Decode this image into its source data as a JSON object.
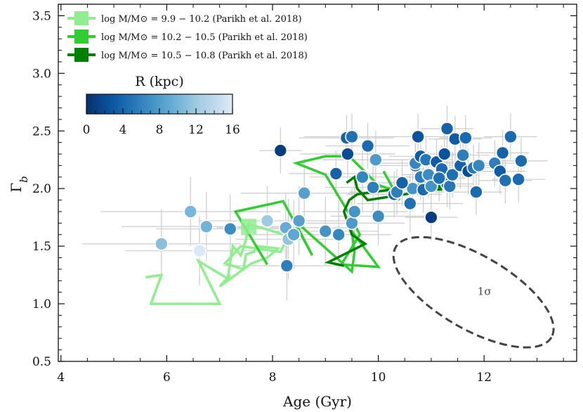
{
  "chart_data": {
    "type": "scatter",
    "xlabel": "Age (Gyr)",
    "ylabel": "Γ_b",
    "xlim": [
      3.95,
      13.75
    ],
    "ylim": [
      0.5,
      3.6
    ],
    "x_ticks": [
      4,
      6,
      8,
      10,
      12
    ],
    "y_ticks": [
      0.5,
      1.0,
      1.5,
      2.0,
      2.5,
      3.0,
      3.5
    ],
    "colorbar": {
      "title": "R (kpc)",
      "range": [
        0,
        16
      ],
      "ticks": [
        0,
        4,
        8,
        12,
        16
      ],
      "colormap": [
        "#08306b",
        "#08519c",
        "#2171b5",
        "#4292c6",
        "#6baed6",
        "#9ecae1",
        "#c6dbef",
        "#deebf7"
      ],
      "location": "upper-left"
    },
    "legend": {
      "location": "upper-left",
      "entries": [
        {
          "label": "log M/M⊙ = 9.9 − 10.2 (Parikh et al. 2018)",
          "color": "#90ee90"
        },
        {
          "label": "log M/M⊙ = 10.2 − 10.5 (Parikh et al. 2018)",
          "color": "#32cd32"
        },
        {
          "label": "log M/M⊙ = 10.5 − 10.8 (Parikh et al. 2018)",
          "color": "#008000"
        }
      ]
    },
    "series": [
      {
        "name": "log M/M⊙ = 9.9 − 10.2 (Parikh et al. 2018)",
        "color": "#90ee90",
        "type": "line",
        "points": [
          [
            5.6,
            1.23
          ],
          [
            5.9,
            1.25
          ],
          [
            5.7,
            1.0
          ],
          [
            7.0,
            1.0
          ],
          [
            6.6,
            1.37
          ],
          [
            7.15,
            1.22
          ],
          [
            7.25,
            1.5
          ],
          [
            7.4,
            1.42
          ],
          [
            7.5,
            1.56
          ],
          [
            7.55,
            1.69
          ],
          [
            8.3,
            1.59
          ],
          [
            8.15,
            1.45
          ],
          [
            7.4,
            1.5
          ],
          [
            7.3,
            1.45
          ],
          [
            7.1,
            1.35
          ],
          [
            7.45,
            1.3
          ],
          [
            7.5,
            1.43
          ],
          [
            7.65,
            1.45
          ],
          [
            7.7,
            1.5
          ],
          [
            8.1,
            1.48
          ],
          [
            7.9,
            1.4
          ],
          [
            7.6,
            1.35
          ],
          [
            7.0,
            1.15
          ],
          [
            7.2,
            1.25
          ]
        ]
      },
      {
        "name": "log M/M⊙ = 10.2 − 10.5 (Parikh et al. 2018)",
        "color": "#32cd32",
        "type": "line",
        "points": [
          [
            7.9,
            1.34
          ],
          [
            7.3,
            1.8
          ],
          [
            8.2,
            1.89
          ],
          [
            8.75,
            1.42
          ],
          [
            8.4,
            1.73
          ],
          [
            9.5,
            1.28
          ],
          [
            9.55,
            1.45
          ],
          [
            9.5,
            1.63
          ],
          [
            10.0,
            1.32
          ],
          [
            9.3,
            1.34
          ],
          [
            9.65,
            1.6
          ],
          [
            9.45,
            1.78
          ],
          [
            9.0,
            2.12
          ],
          [
            8.45,
            2.22
          ],
          [
            9.0,
            2.28
          ],
          [
            9.45,
            2.28
          ],
          [
            10.0,
            2.03
          ],
          [
            10.2,
            2.0
          ],
          [
            10.4,
            1.9
          ],
          [
            10.1,
            2.15
          ]
        ]
      },
      {
        "name": "log M/M⊙ = 10.5 − 10.8 (Parikh et al. 2018)",
        "color": "#008000",
        "type": "line",
        "points": [
          [
            9.35,
            1.33
          ],
          [
            9.05,
            1.36
          ],
          [
            9.75,
            1.52
          ],
          [
            9.5,
            1.6
          ],
          [
            9.35,
            1.8
          ],
          [
            9.45,
            1.9
          ],
          [
            9.6,
            1.95
          ],
          [
            9.9,
            1.97
          ],
          [
            10.4,
            2.0
          ],
          [
            10.95,
            2.05
          ],
          [
            11.1,
            2.0
          ],
          [
            10.5,
            1.95
          ],
          [
            9.8,
            1.9
          ],
          [
            9.6,
            2.0
          ],
          [
            9.55,
            2.1
          ],
          [
            9.4,
            2.05
          ]
        ]
      },
      {
        "name": "data",
        "type": "scatter",
        "points": [
          [
            5.9,
            1.52,
            10.5,
            1.5,
            0.3
          ],
          [
            6.45,
            1.8,
            9.8,
            1.7,
            0.3
          ],
          [
            6.62,
            1.46,
            15.5,
            1.4,
            0.3
          ],
          [
            6.75,
            1.67,
            9.5,
            1.6,
            0.3
          ],
          [
            7.2,
            1.65,
            6.5,
            1.4,
            0.3
          ],
          [
            7.9,
            1.72,
            11.5,
            1.3,
            0.3
          ],
          [
            8.15,
            2.33,
            1.0,
            0.4,
            0.2
          ],
          [
            8.25,
            1.66,
            9.0,
            1.3,
            0.3
          ],
          [
            8.27,
            1.33,
            5.5,
            1.2,
            0.3
          ],
          [
            8.3,
            1.56,
            11.0,
            1.0,
            0.35
          ],
          [
            8.4,
            1.6,
            8.5,
            1.0,
            0.3
          ],
          [
            8.5,
            1.72,
            8.0,
            1.1,
            0.3
          ],
          [
            8.6,
            1.96,
            8.0,
            1.2,
            0.3
          ],
          [
            9.0,
            1.63,
            7.0,
            1.0,
            0.3
          ],
          [
            9.2,
            2.13,
            3.5,
            0.9,
            0.2
          ],
          [
            9.25,
            1.6,
            6.0,
            1.0,
            0.3
          ],
          [
            9.4,
            2.44,
            3.5,
            0.9,
            0.2
          ],
          [
            9.42,
            2.3,
            2.0,
            0.9,
            0.2
          ],
          [
            9.5,
            2.45,
            4.5,
            0.9,
            0.2
          ],
          [
            9.5,
            1.7,
            7.5,
            1.0,
            0.3
          ],
          [
            9.55,
            1.8,
            7.0,
            1.0,
            0.3
          ],
          [
            9.7,
            2.1,
            6.0,
            1.0,
            0.3
          ],
          [
            9.8,
            2.37,
            4.0,
            0.8,
            0.2
          ],
          [
            9.9,
            2.01,
            5.5,
            0.9,
            0.2
          ],
          [
            9.95,
            2.25,
            7.5,
            1.0,
            0.25
          ],
          [
            10.0,
            1.76,
            6.5,
            0.9,
            0.25
          ],
          [
            10.3,
            1.95,
            3.5,
            0.9,
            0.2
          ],
          [
            10.35,
            1.97,
            5.5,
            0.9,
            0.2
          ],
          [
            10.6,
            1.87,
            4.5,
            1.0,
            0.25
          ],
          [
            10.65,
            2.0,
            7.0,
            0.8,
            0.2
          ],
          [
            10.7,
            2.2,
            3.5,
            0.8,
            0.2
          ],
          [
            10.7,
            2.22,
            6.0,
            0.8,
            0.2
          ],
          [
            10.75,
            2.45,
            2.5,
            0.7,
            0.2
          ],
          [
            10.8,
            2.28,
            3.0,
            0.6,
            0.2
          ],
          [
            10.8,
            2.1,
            5.5,
            0.6,
            0.2
          ],
          [
            10.85,
            1.99,
            4.0,
            0.6,
            0.2
          ],
          [
            10.9,
            2.25,
            5.0,
            0.5,
            0.2
          ],
          [
            10.95,
            2.12,
            6.5,
            0.5,
            0.2
          ],
          [
            11.0,
            2.02,
            7.0,
            0.5,
            0.2
          ],
          [
            11.0,
            1.75,
            1.0,
            0.5,
            0.2
          ],
          [
            11.1,
            2.23,
            3.0,
            0.5,
            0.2
          ],
          [
            11.2,
            2.17,
            4.0,
            0.5,
            0.2
          ],
          [
            11.25,
            2.3,
            2.5,
            0.5,
            0.2
          ],
          [
            11.3,
            2.04,
            3.5,
            0.5,
            0.2
          ],
          [
            11.35,
            2.02,
            5.0,
            0.5,
            0.2
          ],
          [
            11.4,
            2.12,
            4.5,
            0.5,
            0.2
          ],
          [
            11.45,
            2.43,
            3.0,
            0.5,
            0.2
          ],
          [
            11.55,
            2.2,
            3.5,
            0.5,
            0.2
          ],
          [
            11.6,
            2.29,
            5.5,
            0.5,
            0.2
          ],
          [
            11.65,
            2.44,
            4.0,
            0.5,
            0.2
          ],
          [
            11.7,
            2.15,
            2.0,
            0.5,
            0.2
          ],
          [
            11.8,
            2.18,
            5.0,
            0.5,
            0.2
          ],
          [
            11.85,
            1.97,
            4.0,
            0.5,
            0.2
          ],
          [
            11.9,
            2.2,
            6.0,
            0.5,
            0.2
          ],
          [
            12.2,
            2.22,
            5.5,
            0.5,
            0.2
          ],
          [
            12.3,
            2.15,
            3.0,
            0.5,
            0.2
          ],
          [
            12.35,
            2.31,
            3.5,
            0.5,
            0.2
          ],
          [
            12.4,
            2.07,
            4.5,
            0.5,
            0.2
          ],
          [
            12.5,
            2.45,
            4.0,
            0.5,
            0.2
          ],
          [
            12.65,
            2.08,
            4.0,
            0.5,
            0.2
          ],
          [
            12.7,
            2.24,
            4.0,
            0.5,
            0.2
          ],
          [
            11.3,
            2.52,
            3.5,
            0.5,
            0.2
          ],
          [
            10.45,
            2.05,
            3.5,
            0.8,
            0.2
          ],
          [
            11.15,
            2.09,
            4.5,
            0.5,
            0.2
          ]
        ]
      }
    ],
    "annotations": [
      {
        "text": "1σ",
        "x": 11.9,
        "y": 1.1,
        "shape": "dashed-ellipse",
        "cx": 11.8,
        "cy": 1.1,
        "rx_data": 1.7,
        "ry_data": 0.32,
        "angle_deg": -30,
        "color": "#444444"
      }
    ],
    "grid": false
  }
}
